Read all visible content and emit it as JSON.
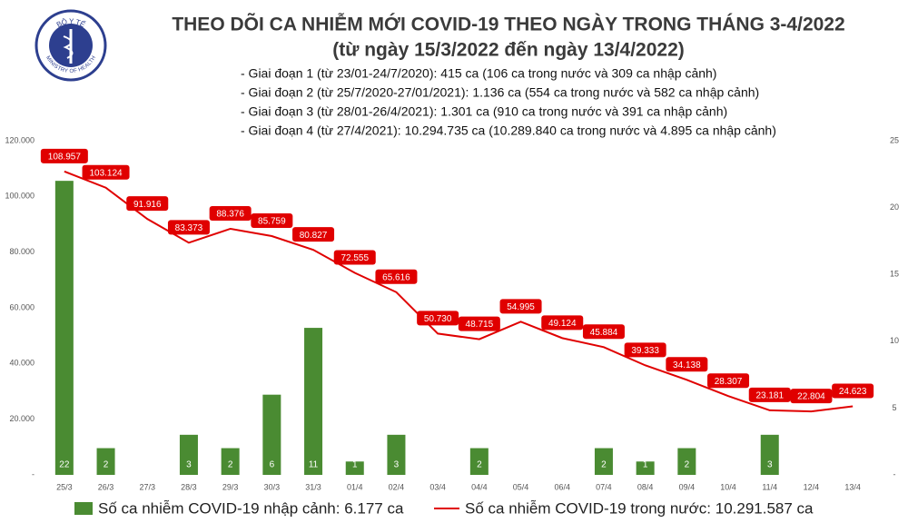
{
  "logo": {
    "top": "BỘ Y TẾ",
    "bottom": "MINISTRY OF HEALTH"
  },
  "chart_data": {
    "type": "combo",
    "title": "THEO DÕI CA NHIỄM MỚI COVID-19 THEO NGÀY TRONG THÁNG 3-4/2022",
    "subtitle": "(từ ngày 15/3/2022 đến ngày 13/4/2022)",
    "annotations": [
      "- Giai đoạn 1 (từ 23/01-24/7/2020): 415 ca (106 ca trong nước và 309 ca nhập cảnh)",
      "- Giai đoạn 2 (từ 25/7/2020-27/01/2021): 1.136 ca (554 ca trong nước và 582 ca nhập cảnh)",
      "- Giai đoạn 3 (từ 28/01-26/4/2021): 1.301 ca (910 ca trong nước và 391 ca nhập cảnh)",
      "- Giai đoạn 4 (từ 27/4/2021): 10.294.735 ca (10.289.840 ca trong nước và 4.895 ca nhập cảnh)"
    ],
    "categories": [
      "25/3",
      "26/3",
      "27/3",
      "28/3",
      "29/3",
      "30/3",
      "31/3",
      "01/4",
      "02/4",
      "03/4",
      "04/4",
      "05/4",
      "06/4",
      "07/4",
      "08/4",
      "09/4",
      "10/4",
      "11/4",
      "12/4",
      "13/4"
    ],
    "series": [
      {
        "name": "Số ca nhiễm COVID-19 nhập cảnh: 6.177 ca",
        "type": "bar",
        "axis": "y2",
        "color": "#4a8b32",
        "values": [
          22,
          2,
          0,
          3,
          2,
          6,
          11,
          1,
          3,
          0,
          2,
          0,
          0,
          2,
          1,
          2,
          0,
          3,
          0,
          0
        ],
        "value_labels": [
          "22",
          "2",
          "-",
          "3",
          "2",
          "6",
          "11",
          "1",
          "3",
          "-",
          "2",
          "-",
          "-",
          "2",
          "1",
          "2",
          "-",
          "3",
          "-",
          "-"
        ]
      },
      {
        "name": "Số ca nhiễm COVID-19 trong nước: 10.291.587 ca",
        "type": "line",
        "color": "#e00000",
        "values": [
          108957,
          103124,
          91916,
          83373,
          88376,
          85759,
          80827,
          72555,
          65616,
          50730,
          48715,
          54995,
          49124,
          45884,
          39333,
          34138,
          28307,
          23181,
          22804,
          24623
        ],
        "value_labels": [
          "108.957",
          "103.124",
          "91.916",
          "83.373",
          "88.376",
          "85.759",
          "80.827",
          "72.555",
          "65.616",
          "50.730",
          "48.715",
          "54.995",
          "49.124",
          "45.884",
          "39.333",
          "34.138",
          "28.307",
          "23.181",
          "22.804",
          "24.623"
        ]
      }
    ],
    "ylim": [
      0,
      120000
    ],
    "yticks": [
      {
        "value": 0,
        "label": "-"
      },
      {
        "value": 20000,
        "label": "20.000"
      },
      {
        "value": 40000,
        "label": "40.000"
      },
      {
        "value": 60000,
        "label": "60.000"
      },
      {
        "value": 80000,
        "label": "80.000"
      },
      {
        "value": 100000,
        "label": "100.000"
      },
      {
        "value": 120000,
        "label": "120.000"
      }
    ],
    "y2lim": [
      0,
      25
    ],
    "y2ticks": [
      {
        "value": 0,
        "label": "-"
      },
      5,
      10,
      15,
      20,
      25
    ],
    "grid": false
  }
}
